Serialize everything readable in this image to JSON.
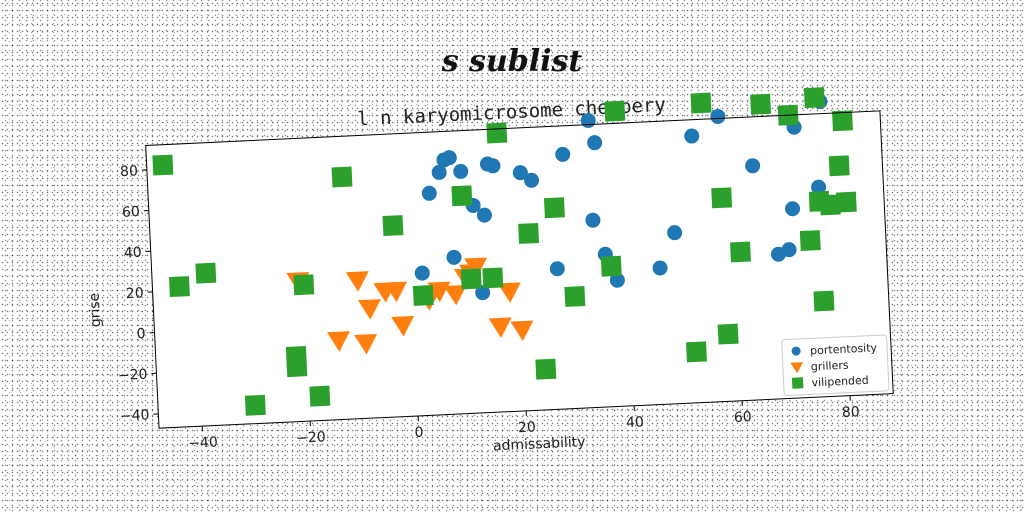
{
  "suptitle": "s sublist",
  "chart_data": {
    "type": "scatter",
    "title": "l n karyomicrosome cheapery",
    "xlabel": "admissability",
    "ylabel": "grise",
    "xlim": [
      -48,
      88
    ],
    "ylim": [
      -47,
      92
    ],
    "xticks": [
      -40,
      -20,
      0,
      20,
      40,
      60,
      80
    ],
    "yticks": [
      -40,
      -20,
      0,
      20,
      40,
      60,
      80
    ],
    "grid": false,
    "legend_position": "lower-right",
    "series": [
      {
        "name": "portentosity",
        "marker": "circle",
        "color": "#1f77b4",
        "points": [
          [
            2,
            23
          ],
          [
            4,
            62
          ],
          [
            6,
            72
          ],
          [
            7,
            78
          ],
          [
            8,
            79
          ],
          [
            8,
            30
          ],
          [
            10,
            72
          ],
          [
            12,
            55
          ],
          [
            13,
            12
          ],
          [
            14,
            50
          ],
          [
            15,
            75
          ],
          [
            16,
            74
          ],
          [
            21,
            70
          ],
          [
            23,
            66
          ],
          [
            27,
            22
          ],
          [
            29,
            78
          ],
          [
            34,
            45
          ],
          [
            34,
            94
          ],
          [
            35,
            83
          ],
          [
            36,
            28
          ],
          [
            38,
            15
          ],
          [
            46,
            20
          ],
          [
            49,
            37
          ],
          [
            53,
            84
          ],
          [
            58,
            93
          ],
          [
            64,
            68
          ],
          [
            68,
            24
          ],
          [
            70,
            26
          ],
          [
            71,
            46
          ],
          [
            72,
            86
          ],
          [
            76,
            56
          ],
          [
            77,
            98
          ]
        ]
      },
      {
        "name": "grillers",
        "marker": "triangle-down",
        "color": "#ff7f0e",
        "points": [
          [
            -21,
            22
          ],
          [
            -14,
            -8
          ],
          [
            -10,
            21
          ],
          [
            -9,
            -10
          ],
          [
            -8,
            7
          ],
          [
            -5,
            15
          ],
          [
            -3,
            15
          ],
          [
            -2,
            -2
          ],
          [
            3,
            10
          ],
          [
            5,
            14
          ],
          [
            8,
            12
          ],
          [
            10,
            20
          ],
          [
            11,
            22
          ],
          [
            12,
            25
          ],
          [
            16,
            -5
          ],
          [
            18,
            12
          ],
          [
            20,
            -7
          ]
        ]
      },
      {
        "name": "vilipended",
        "marker": "square",
        "color": "#2ca02c",
        "points": [
          [
            -45,
            82
          ],
          [
            -43,
            22
          ],
          [
            -38,
            28
          ],
          [
            -30,
            -38
          ],
          [
            -22,
            -15
          ],
          [
            -22,
            -20
          ],
          [
            -20,
            20
          ],
          [
            -18,
            -35
          ],
          [
            -12,
            72
          ],
          [
            -3,
            47
          ],
          [
            2,
            12
          ],
          [
            10,
            60
          ],
          [
            11,
            19
          ],
          [
            15,
            19
          ],
          [
            17,
            90
          ],
          [
            22,
            40
          ],
          [
            24,
            -27
          ],
          [
            27,
            52
          ],
          [
            30,
            8
          ],
          [
            37,
            22
          ],
          [
            39,
            98
          ],
          [
            52,
            -22
          ],
          [
            55,
            100
          ],
          [
            58,
            -14
          ],
          [
            58,
            53
          ],
          [
            61,
            26
          ],
          [
            66,
            98
          ],
          [
            71,
            92
          ],
          [
            74,
            30
          ],
          [
            76,
            100
          ],
          [
            76,
            49
          ],
          [
            78,
            47
          ],
          [
            80,
            66
          ],
          [
            81,
            48
          ],
          [
            81,
            88
          ],
          [
            76,
            0
          ]
        ]
      }
    ]
  }
}
